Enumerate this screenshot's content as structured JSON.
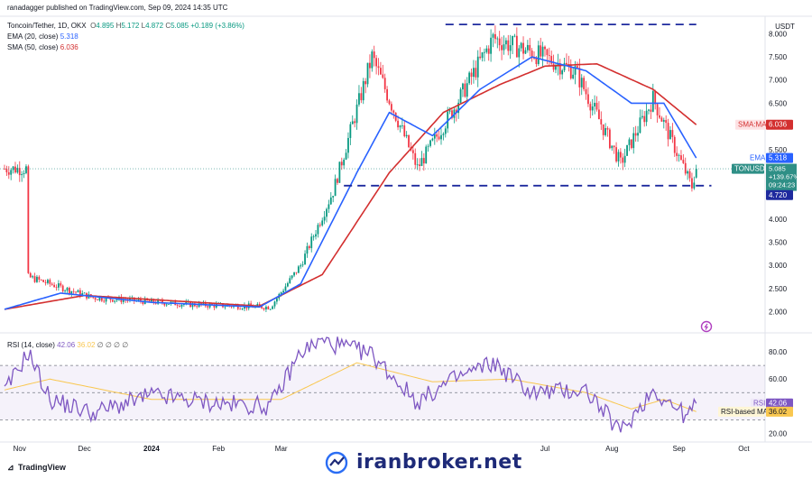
{
  "header": {
    "published": "ranadagger published on TradingView.com, Sep 09, 2024 14:35 UTC",
    "symbol": "Toncoin/Tether, 1D, OKX",
    "o_label": "O",
    "o": "4.895",
    "h_label": "H",
    "h": "5.172",
    "l_label": "L",
    "l": "4.872",
    "c_label": "C",
    "c": "5.085",
    "change": "+0.189 (+3.86%)",
    "ema_label": "EMA (20, close)",
    "ema_value": "5.318",
    "sma_label": "SMA (50, close)",
    "sma_value": "6.036"
  },
  "price_axis": {
    "currency": "USDT",
    "ticks": [
      "8.000",
      "7.500",
      "7.000",
      "6.500",
      "6.000",
      "5.500",
      "5.000",
      "4.500",
      "4.000",
      "3.500",
      "3.000",
      "2.500",
      "2.000"
    ],
    "tick_values": [
      8.0,
      7.5,
      7.0,
      6.5,
      6.0,
      5.5,
      5.0,
      4.5,
      4.0,
      3.5,
      3.0,
      2.5,
      2.0
    ]
  },
  "labels": {
    "sma_tag": "SMA:MA",
    "sma_tag_value": "6.036",
    "ema_tag": "EMA",
    "ema_tag_value": "5.318",
    "ticker_tag": "TONUSDT",
    "ticker_price": "5.085",
    "ticker_change": "+139.67%",
    "ticker_countdown": "09:24:23",
    "support_tag_value": "4.720",
    "rsi_tag": "RSI",
    "rsi_tag_value": "42.06",
    "rsi_ma_tag": "RSI-based MA",
    "rsi_ma_tag_value": "36.02"
  },
  "rsi": {
    "title": "RSI (14, close)",
    "value": "42.06",
    "ma_value": "36.02",
    "na": "∅ ∅ ∅ ∅",
    "ticks": [
      "80.00",
      "60.00",
      "40.00",
      "20.00"
    ],
    "tick_values": [
      80,
      60,
      40,
      20
    ]
  },
  "time_axis": {
    "labels": [
      "Nov",
      "Dec",
      "2024",
      "Feb",
      "Mar",
      "Jul",
      "Aug",
      "Sep",
      "Oct"
    ]
  },
  "footer": {
    "logo": "TradingView",
    "watermark": "iranbroker.net"
  },
  "colors": {
    "up": "#089981",
    "down": "#f23645",
    "ema": "#2962ff",
    "sma": "#d32f2f",
    "rsi": "#7e57c2",
    "rsi_ma": "#f9c74f",
    "level": "#1e2a9e",
    "price_tag": "#2f8f86"
  },
  "chart_data": [
    {
      "type": "candlestick",
      "title": "Toncoin/Tether, 1D, OKX",
      "series": [
        {
          "name": "EMA (20, close)"
        },
        {
          "name": "SMA (50, close)"
        }
      ],
      "ylim": [
        1.6,
        8.3
      ],
      "x_range": [
        "2023-10-25",
        "2024-10-10"
      ],
      "x_ticks": [
        "Nov",
        "Dec",
        "2024",
        "Feb",
        "Mar",
        "Jul",
        "Aug",
        "Sep",
        "Oct"
      ],
      "last": {
        "open": 4.895,
        "high": 5.172,
        "low": 4.872,
        "close": 5.085
      },
      "key_prices": [
        {
          "date": "2023-11-05",
          "price": 2.75
        },
        {
          "date": "2023-12-05",
          "price": 2.3
        },
        {
          "date": "2024-01-20",
          "price": 2.15
        },
        {
          "date": "2024-02-25",
          "price": 2.1
        },
        {
          "date": "2024-03-10",
          "price": 3.0
        },
        {
          "date": "2024-03-25",
          "price": 4.6
        },
        {
          "date": "2024-04-12",
          "price": 7.5
        },
        {
          "date": "2024-05-03",
          "price": 5.1
        },
        {
          "date": "2024-05-20",
          "price": 6.4
        },
        {
          "date": "2024-06-07",
          "price": 7.9
        },
        {
          "date": "2024-06-25",
          "price": 7.6
        },
        {
          "date": "2024-07-15",
          "price": 7.2
        },
        {
          "date": "2024-08-05",
          "price": 5.2
        },
        {
          "date": "2024-08-20",
          "price": 6.6
        },
        {
          "date": "2024-09-07",
          "price": 4.7
        },
        {
          "date": "2024-09-09",
          "price": 5.085
        }
      ],
      "ema_20": [
        {
          "date": "2023-10-25",
          "value": 2.05
        },
        {
          "date": "2023-11-20",
          "value": 2.4
        },
        {
          "date": "2024-01-01",
          "value": 2.2
        },
        {
          "date": "2024-02-20",
          "value": 2.1
        },
        {
          "date": "2024-03-10",
          "value": 2.6
        },
        {
          "date": "2024-04-05",
          "value": 5.0
        },
        {
          "date": "2024-04-20",
          "value": 6.3
        },
        {
          "date": "2024-05-10",
          "value": 5.8
        },
        {
          "date": "2024-06-01",
          "value": 6.8
        },
        {
          "date": "2024-06-25",
          "value": 7.5
        },
        {
          "date": "2024-07-20",
          "value": 7.2
        },
        {
          "date": "2024-08-10",
          "value": 6.5
        },
        {
          "date": "2024-08-25",
          "value": 6.5
        },
        {
          "date": "2024-09-09",
          "value": 5.318
        }
      ],
      "sma_50": [
        {
          "date": "2023-10-25",
          "value": 2.05
        },
        {
          "date": "2023-12-01",
          "value": 2.35
        },
        {
          "date": "2024-02-20",
          "value": 2.12
        },
        {
          "date": "2024-03-20",
          "value": 2.8
        },
        {
          "date": "2024-04-20",
          "value": 5.0
        },
        {
          "date": "2024-05-15",
          "value": 6.3
        },
        {
          "date": "2024-06-10",
          "value": 6.9
        },
        {
          "date": "2024-07-01",
          "value": 7.3
        },
        {
          "date": "2024-07-25",
          "value": 7.35
        },
        {
          "date": "2024-08-20",
          "value": 6.8
        },
        {
          "date": "2024-09-09",
          "value": 6.036
        }
      ],
      "horizontal_levels": [
        8.2,
        4.72
      ]
    },
    {
      "type": "line",
      "title": "RSI (14, close)",
      "series": [
        {
          "name": "RSI"
        },
        {
          "name": "RSI-based MA"
        }
      ],
      "ylim": [
        15,
        92
      ],
      "band": [
        30,
        70
      ],
      "rsi_points": [
        {
          "date": "2023-10-25",
          "value": 50
        },
        {
          "date": "2023-11-05",
          "value": 80
        },
        {
          "date": "2023-11-15",
          "value": 45
        },
        {
          "date": "2023-12-05",
          "value": 35
        },
        {
          "date": "2024-01-01",
          "value": 48
        },
        {
          "date": "2024-02-01",
          "value": 42
        },
        {
          "date": "2024-02-25",
          "value": 40
        },
        {
          "date": "2024-03-10",
          "value": 80
        },
        {
          "date": "2024-03-20",
          "value": 88
        },
        {
          "date": "2024-04-12",
          "value": 78
        },
        {
          "date": "2024-05-03",
          "value": 43
        },
        {
          "date": "2024-05-20",
          "value": 60
        },
        {
          "date": "2024-06-07",
          "value": 72
        },
        {
          "date": "2024-06-25",
          "value": 50
        },
        {
          "date": "2024-07-20",
          "value": 52
        },
        {
          "date": "2024-08-05",
          "value": 21
        },
        {
          "date": "2024-08-20",
          "value": 52
        },
        {
          "date": "2024-09-05",
          "value": 32
        },
        {
          "date": "2024-09-09",
          "value": 42.06
        }
      ],
      "rsi_ma_points": [
        {
          "date": "2023-10-25",
          "value": 52
        },
        {
          "date": "2023-11-15",
          "value": 60
        },
        {
          "date": "2024-01-01",
          "value": 45
        },
        {
          "date": "2024-03-01",
          "value": 45
        },
        {
          "date": "2024-04-05",
          "value": 72
        },
        {
          "date": "2024-05-10",
          "value": 58
        },
        {
          "date": "2024-06-15",
          "value": 60
        },
        {
          "date": "2024-07-20",
          "value": 50
        },
        {
          "date": "2024-08-10",
          "value": 38
        },
        {
          "date": "2024-08-25",
          "value": 45
        },
        {
          "date": "2024-09-09",
          "value": 36.02
        }
      ]
    }
  ]
}
